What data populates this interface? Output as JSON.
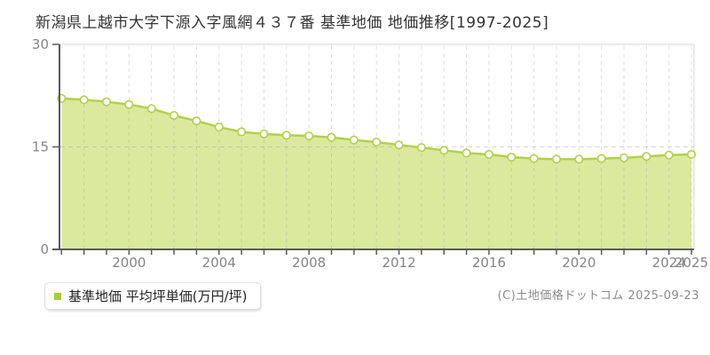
{
  "title": "新潟県上越市大字下源入字風網４３７番 基準地価 地価推移[1997-2025]",
  "legend": {
    "label": "基準地価 平均坪単価(万円/坪)",
    "marker_color": "#a9cd33"
  },
  "copyright": "(C)土地価格ドットコム 2025-09-23",
  "chart_data": {
    "type": "area",
    "title": "新潟県上越市大字下源入字風網４３７番 基準地価 地価推移[1997-2025]",
    "series_name": "基準地価",
    "ylabel": "平均坪単価(万円/坪)",
    "x": [
      1997,
      1998,
      1999,
      2000,
      2001,
      2002,
      2003,
      2004,
      2005,
      2006,
      2007,
      2008,
      2009,
      2010,
      2011,
      2012,
      2013,
      2014,
      2015,
      2016,
      2017,
      2018,
      2019,
      2020,
      2021,
      2022,
      2023,
      2024,
      2025
    ],
    "values": [
      22.1,
      21.9,
      21.6,
      21.2,
      20.6,
      19.6,
      18.8,
      17.9,
      17.2,
      16.9,
      16.7,
      16.6,
      16.4,
      16.0,
      15.7,
      15.3,
      14.9,
      14.5,
      14.1,
      13.9,
      13.5,
      13.3,
      13.2,
      13.2,
      13.3,
      13.4,
      13.6,
      13.8,
      13.9
    ],
    "ylim": [
      0,
      30
    ],
    "yticks": [
      0,
      15,
      30
    ],
    "xticks_labeled": [
      2000,
      2004,
      2008,
      2012,
      2016,
      2020,
      2024,
      2025
    ],
    "grid": true,
    "legend_position": "bottom-left",
    "colors": {
      "area_fill": "#dbe99e",
      "line": "#b2d04b",
      "marker_fill": "#ffffff",
      "marker_stroke": "#b2d04b",
      "grid": "#9a9a9a",
      "plot_border": "#e3e3e3",
      "axis": "#5a5a5a",
      "tick_label": "#858585"
    }
  }
}
